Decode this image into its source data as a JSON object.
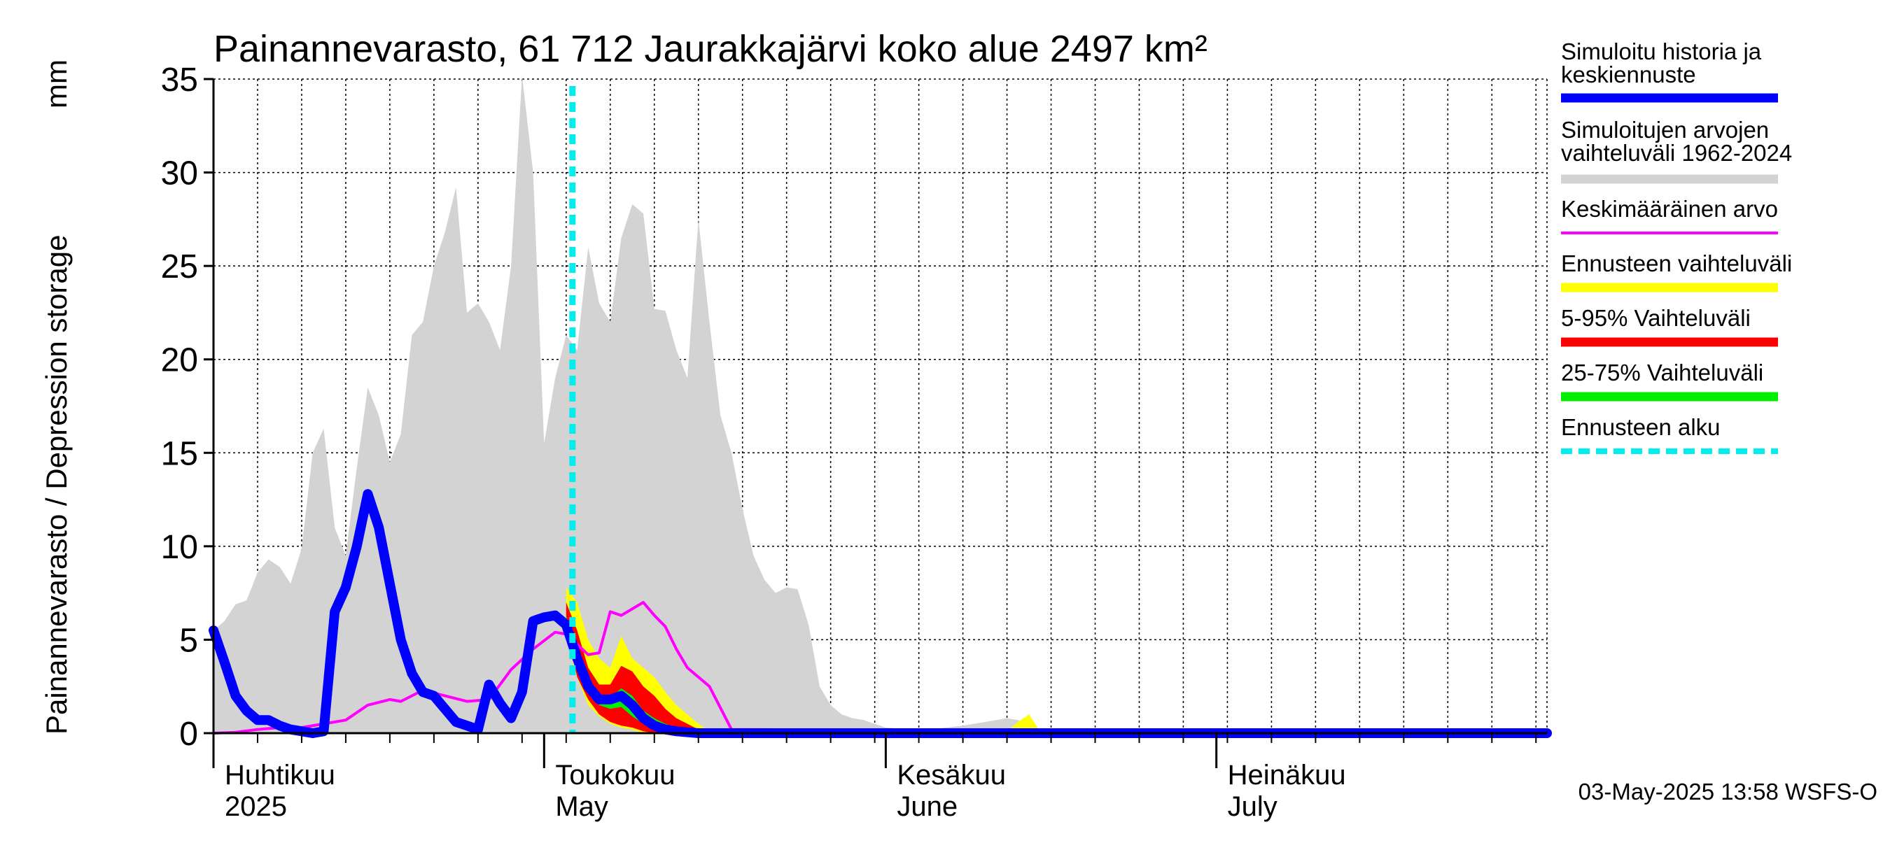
{
  "chart_data": {
    "type": "area",
    "title": "Painannevarasto, 61 712 Jaurakkajärvi koko alue 2497 km²",
    "ylabel": "Painannevarasto / Depression storage",
    "yunit": "mm",
    "ylim": [
      0,
      35
    ],
    "yticks": [
      0,
      5,
      10,
      15,
      20,
      25,
      30,
      35
    ],
    "xlim": [
      "2025-04-01",
      "2025-07-31"
    ],
    "grid": true,
    "legend_placement": "right",
    "month_labels": [
      {
        "fi": "Huhtikuu",
        "en": "2025",
        "date": "2025-04-01"
      },
      {
        "fi": "Toukokuu",
        "en": "May",
        "date": "2025-05-01"
      },
      {
        "fi": "Kesäkuu",
        "en": "June",
        "date": "2025-06-01"
      },
      {
        "fi": "Heinäkuu",
        "en": "July",
        "date": "2025-07-01"
      }
    ],
    "forecast_start": "2025-05-03",
    "legend": [
      {
        "label": "Simuloitu historia ja keskiennuste",
        "lines": [
          "Simuloitu historia ja",
          "keskiennuste"
        ],
        "color": "#0000ff",
        "style": "thick"
      },
      {
        "label": "Simuloitujen arvojen vaihteluväli 1962-2024",
        "lines": [
          "Simuloitujen arvojen",
          "vaihteluväli 1962-2024"
        ],
        "color": "#d3d3d3",
        "style": "band"
      },
      {
        "label": "Keskimääräinen arvo",
        "lines": [
          "Keskimääräinen arvo"
        ],
        "color": "#ff00ff",
        "style": "thin"
      },
      {
        "label": "Ennusteen vaihteluväli",
        "lines": [
          "Ennusteen vaihteluväli"
        ],
        "color": "#ffff00",
        "style": "band"
      },
      {
        "label": "5-95% Vaihteluväli",
        "lines": [
          "5-95% Vaihteluväli"
        ],
        "color": "#ff0000",
        "style": "band"
      },
      {
        "label": "25-75% Vaihteluväli",
        "lines": [
          "25-75% Vaihteluväli"
        ],
        "color": "#00ee00",
        "style": "band"
      },
      {
        "label": "Ennusteen alku",
        "lines": [
          "Ennusteen alku"
        ],
        "color": "#00eeee",
        "style": "dashed"
      }
    ],
    "series": [
      {
        "name": "Simuloitujen arvojen vaihteluväli 1962-2024",
        "color": "#d3d3d3",
        "kind": "band",
        "x": [
          "2025-04-01",
          "2025-04-02",
          "2025-04-03",
          "2025-04-04",
          "2025-04-05",
          "2025-04-06",
          "2025-04-07",
          "2025-04-08",
          "2025-04-09",
          "2025-04-10",
          "2025-04-11",
          "2025-04-12",
          "2025-04-13",
          "2025-04-14",
          "2025-04-15",
          "2025-04-16",
          "2025-04-17",
          "2025-04-18",
          "2025-04-19",
          "2025-04-20",
          "2025-04-21",
          "2025-04-22",
          "2025-04-23",
          "2025-04-24",
          "2025-04-25",
          "2025-04-26",
          "2025-04-27",
          "2025-04-28",
          "2025-04-29",
          "2025-04-30",
          "2025-05-01",
          "2025-05-02",
          "2025-05-03",
          "2025-05-04",
          "2025-05-05",
          "2025-05-06",
          "2025-05-07",
          "2025-05-08",
          "2025-05-09",
          "2025-05-10",
          "2025-05-11",
          "2025-05-12",
          "2025-05-13",
          "2025-05-14",
          "2025-05-15",
          "2025-05-16",
          "2025-05-17",
          "2025-05-18",
          "2025-05-19",
          "2025-05-20",
          "2025-05-21",
          "2025-05-22",
          "2025-05-23",
          "2025-05-24",
          "2025-05-25",
          "2025-05-26",
          "2025-05-27",
          "2025-05-28",
          "2025-05-29",
          "2025-05-30",
          "2025-05-31",
          "2025-06-01",
          "2025-06-03",
          "2025-06-05",
          "2025-06-08",
          "2025-06-10",
          "2025-06-12",
          "2025-06-13",
          "2025-06-14",
          "2025-06-15",
          "2025-06-16",
          "2025-07-31"
        ],
        "upper": [
          5.5,
          6.0,
          6.9,
          7.1,
          8.6,
          9.3,
          8.9,
          8.0,
          9.9,
          15.0,
          16.3,
          11.0,
          9.5,
          14.2,
          18.5,
          17.0,
          14.5,
          16.0,
          21.3,
          22.0,
          25.0,
          26.8,
          29.2,
          22.5,
          23.0,
          22.0,
          20.5,
          25.0,
          35.2,
          30.0,
          15.5,
          19.0,
          21.3,
          20.5,
          26.0,
          23.0,
          22.0,
          26.5,
          28.3,
          27.8,
          22.7,
          22.6,
          20.5,
          19.0,
          27.5,
          22.0,
          17.0,
          15.0,
          12.0,
          9.5,
          8.2,
          7.5,
          7.8,
          7.7,
          5.8,
          2.5,
          1.5,
          1.0,
          0.8,
          0.7,
          0.5,
          0.3,
          0.2,
          0.2,
          0.4,
          0.6,
          0.8,
          0.7,
          0.3,
          0.2,
          0.1,
          0.1
        ],
        "lower": [
          0,
          0,
          0,
          0,
          0,
          0,
          0,
          0,
          0,
          0,
          0,
          0,
          0,
          0,
          0,
          0,
          0,
          0,
          0,
          0,
          0,
          0,
          0,
          0,
          0,
          0,
          0,
          0,
          0,
          0,
          0,
          0,
          0,
          0,
          0,
          0,
          0,
          0,
          0,
          0,
          0,
          0,
          0,
          0,
          0,
          0,
          0,
          0,
          0,
          0,
          0,
          0,
          0,
          0,
          0,
          0,
          0,
          0,
          0,
          0,
          0,
          0,
          0,
          0,
          0,
          0,
          0,
          0,
          0,
          0,
          0,
          0
        ]
      },
      {
        "name": "Ennusteen vaihteluväli",
        "color": "#ffff00",
        "kind": "band",
        "x": [
          "2025-05-03",
          "2025-05-04",
          "2025-05-05",
          "2025-05-06",
          "2025-05-07",
          "2025-05-08",
          "2025-05-09",
          "2025-05-10",
          "2025-05-11",
          "2025-05-12",
          "2025-05-13",
          "2025-05-14",
          "2025-05-15",
          "2025-05-16"
        ],
        "upper": [
          7.8,
          7.0,
          5.0,
          4.0,
          3.5,
          5.2,
          4.0,
          3.5,
          3.0,
          2.2,
          1.5,
          1.0,
          0.5,
          0.1
        ],
        "lower": [
          5.0,
          3.0,
          1.5,
          0.9,
          0.5,
          0.3,
          0.2,
          0,
          0,
          0,
          0,
          0,
          0,
          0
        ]
      },
      {
        "name": "Ennusteen vaihteluväli (Kesäkuu)",
        "color": "#ffff00",
        "kind": "band",
        "x": [
          "2025-06-12",
          "2025-06-13",
          "2025-06-14",
          "2025-06-15"
        ],
        "upper": [
          0.1,
          0.6,
          1.0,
          0.1
        ],
        "lower": [
          0,
          0,
          0,
          0
        ]
      },
      {
        "name": "5-95% Vaihteluväli",
        "color": "#ff0000",
        "kind": "band",
        "x": [
          "2025-05-03",
          "2025-05-04",
          "2025-05-05",
          "2025-05-06",
          "2025-05-07",
          "2025-05-08",
          "2025-05-09",
          "2025-05-10",
          "2025-05-11",
          "2025-05-12",
          "2025-05-13",
          "2025-05-14",
          "2025-05-15",
          "2025-05-16"
        ],
        "upper": [
          7.0,
          5.5,
          3.5,
          2.6,
          2.6,
          3.6,
          3.3,
          2.5,
          2.0,
          1.3,
          0.8,
          0.5,
          0.2,
          0.05
        ],
        "lower": [
          5.5,
          3.0,
          1.8,
          1.0,
          0.6,
          0.4,
          0.3,
          0.1,
          0,
          0,
          0,
          0,
          0,
          0
        ]
      },
      {
        "name": "25-75% Vaihteluväli",
        "color": "#00ee00",
        "kind": "band",
        "x": [
          "2025-05-03",
          "2025-05-04",
          "2025-05-05",
          "2025-05-06",
          "2025-05-07",
          "2025-05-08",
          "2025-05-09",
          "2025-05-10",
          "2025-05-11",
          "2025-05-12",
          "2025-05-13",
          "2025-05-14",
          "2025-05-15",
          "2025-05-16"
        ],
        "upper": [
          6.3,
          4.2,
          2.7,
          2.0,
          1.9,
          2.4,
          2.0,
          1.2,
          0.8,
          0.5,
          0.3,
          0.2,
          0.1,
          0
        ],
        "lower": [
          5.8,
          3.6,
          2.1,
          1.5,
          1.3,
          1.4,
          0.9,
          0.5,
          0.2,
          0.1,
          0,
          0,
          0,
          0
        ]
      },
      {
        "name": "Keskimääräinen arvo",
        "color": "#ff00ff",
        "kind": "line",
        "x": [
          "2025-04-01",
          "2025-04-03",
          "2025-04-05",
          "2025-04-07",
          "2025-04-09",
          "2025-04-11",
          "2025-04-13",
          "2025-04-15",
          "2025-04-17",
          "2025-04-18",
          "2025-04-20",
          "2025-04-22",
          "2025-04-24",
          "2025-04-26",
          "2025-04-28",
          "2025-04-30",
          "2025-05-02",
          "2025-05-03",
          "2025-05-05",
          "2025-05-06",
          "2025-05-07",
          "2025-05-08",
          "2025-05-10",
          "2025-05-11",
          "2025-05-12",
          "2025-05-13",
          "2025-05-14",
          "2025-05-16",
          "2025-05-18",
          "2025-07-31"
        ],
        "y": [
          0,
          0.05,
          0.2,
          0.3,
          0.3,
          0.5,
          0.7,
          1.5,
          1.8,
          1.7,
          2.3,
          2.0,
          1.7,
          1.8,
          3.4,
          4.5,
          5.4,
          5.3,
          4.2,
          4.3,
          6.5,
          6.3,
          7.0,
          6.3,
          5.7,
          4.5,
          3.5,
          2.5,
          0.2,
          0
        ]
      },
      {
        "name": "Simuloitu historia ja keskiennuste",
        "color": "#0000ff",
        "kind": "line",
        "x": [
          "2025-04-01",
          "2025-04-02",
          "2025-04-03",
          "2025-04-04",
          "2025-04-05",
          "2025-04-06",
          "2025-04-07",
          "2025-04-08",
          "2025-04-09",
          "2025-04-10",
          "2025-04-11",
          "2025-04-12",
          "2025-04-13",
          "2025-04-14",
          "2025-04-15",
          "2025-04-16",
          "2025-04-17",
          "2025-04-18",
          "2025-04-19",
          "2025-04-20",
          "2025-04-21",
          "2025-04-22",
          "2025-04-23",
          "2025-04-24",
          "2025-04-25",
          "2025-04-26",
          "2025-04-27",
          "2025-04-28",
          "2025-04-29",
          "2025-04-30",
          "2025-05-01",
          "2025-05-02",
          "2025-05-03",
          "2025-05-04",
          "2025-05-05",
          "2025-05-06",
          "2025-05-07",
          "2025-05-08",
          "2025-05-09",
          "2025-05-10",
          "2025-05-11",
          "2025-05-12",
          "2025-05-13",
          "2025-05-14",
          "2025-05-15",
          "2025-05-16",
          "2025-05-18",
          "2025-07-31"
        ],
        "y": [
          5.5,
          3.8,
          2.0,
          1.2,
          0.7,
          0.7,
          0.4,
          0.2,
          0.1,
          0.0,
          0.1,
          6.5,
          7.8,
          10.0,
          12.8,
          11.0,
          8.0,
          5.0,
          3.2,
          2.2,
          2.0,
          1.3,
          0.6,
          0.4,
          0.2,
          2.6,
          1.6,
          0.8,
          2.2,
          6.0,
          6.2,
          6.3,
          5.8,
          4.0,
          2.5,
          1.8,
          1.8,
          2.0,
          1.5,
          0.8,
          0.4,
          0.2,
          0.1,
          0.05,
          0,
          0,
          0,
          0
        ]
      }
    ]
  },
  "timestamp": "03-May-2025 13:58 WSFS-O"
}
